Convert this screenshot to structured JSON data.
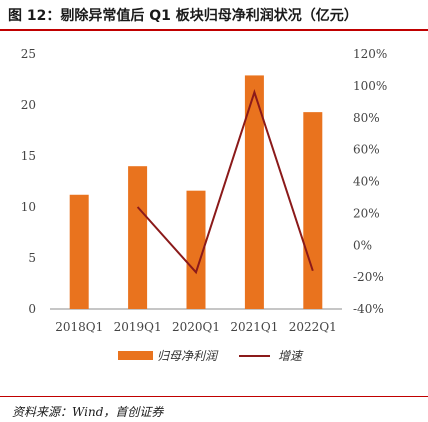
{
  "header": {
    "title": "图 12：剔除异常值后 Q1 板块归母净利润状况（亿元）"
  },
  "footer": {
    "source": "资料来源：Wind，首创证券"
  },
  "colors": {
    "bar": "#E9731E",
    "line": "#8B1A1A",
    "rule": "#C00000",
    "axis": "#8C8C8C"
  },
  "chart_data": {
    "type": "bar",
    "categories": [
      "2018Q1",
      "2019Q1",
      "2020Q1",
      "2021Q1",
      "2022Q1"
    ],
    "series": [
      {
        "name": "归母净利润",
        "type": "bar",
        "axis": "left",
        "values": [
          11.2,
          14.0,
          11.6,
          22.9,
          19.3
        ]
      },
      {
        "name": "增速",
        "type": "line",
        "axis": "right",
        "values": [
          null,
          24,
          -17,
          96,
          -16
        ]
      }
    ],
    "y_left": {
      "lim": [
        0,
        25
      ],
      "ticks": [
        "0",
        "5",
        "10",
        "15",
        "20",
        "25"
      ]
    },
    "y_right": {
      "lim": [
        -40,
        120
      ],
      "ticks": [
        "-40%",
        "-20%",
        "0%",
        "20%",
        "40%",
        "60%",
        "80%",
        "100%",
        "120%"
      ]
    },
    "legend": {
      "position": "bottom",
      "entries": [
        "归母净利润",
        "增速"
      ]
    },
    "grid": false
  }
}
